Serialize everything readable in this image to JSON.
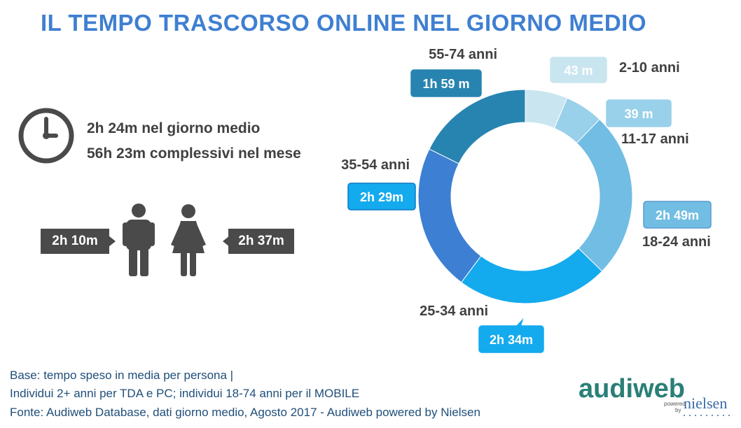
{
  "title": "IL TEMPO TRASCORSO ONLINE NEL GIORNO MEDIO",
  "icons": {
    "clock": "clock-icon",
    "male": "man-icon",
    "female": "woman-icon"
  },
  "stats": {
    "daily": "2h 24m nel giorno medio",
    "monthly": "56h 23m complessivi nel mese"
  },
  "gender": {
    "male_value": "2h 10m",
    "female_value": "2h 37m"
  },
  "chart_data": {
    "type": "pie",
    "variant": "donut",
    "categories": [
      "2-10 anni",
      "11-17 anni",
      "18-24 anni",
      "25-34 anni",
      "35-54 anni",
      "55-74 anni"
    ],
    "value_labels": [
      "43 m",
      "39 m",
      "2h 49m",
      "2h 34m",
      "2h 29m",
      "1h 59 m"
    ],
    "values": [
      43,
      39,
      169,
      154,
      149,
      119
    ],
    "unit": "minutes",
    "colors": [
      "#c9e6f0",
      "#99d0ea",
      "#72bde3",
      "#14aaee",
      "#3c7fd3",
      "#2784b0"
    ]
  },
  "footer": {
    "line1": "Base: tempo speso in media per persona |",
    "line2": "Individui 2+ anni per TDA e PC; individui 18-74 anni per il MOBILE",
    "line3": "Fonte: Audiweb Database, dati giorno medio, Agosto 2017 - Audiweb powered by Nielsen"
  },
  "logo": {
    "brand": "audiweb",
    "powered": "powered",
    "by": "by",
    "partner": "nielsen"
  }
}
